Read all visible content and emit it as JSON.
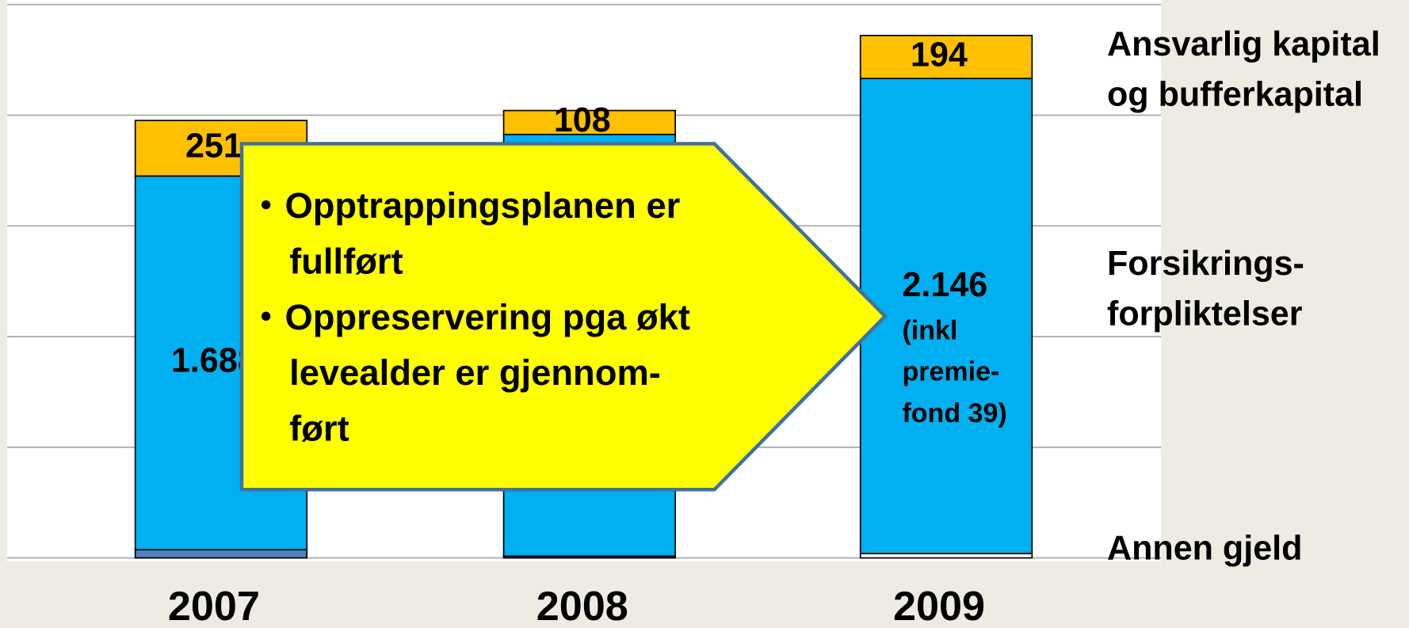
{
  "chart_data": {
    "type": "stacked_bar",
    "categories": [
      "2007",
      "2008",
      "2009"
    ],
    "ylim": [
      0,
      2500
    ],
    "yticks": [
      0,
      500,
      1000,
      1500,
      2000,
      2500
    ],
    "grid": true,
    "series": [
      {
        "name": "Annen gjeld",
        "color": "#4f81bd",
        "colors": [
          "#4f81bd",
          "#1f3864",
          "#ffffff"
        ],
        "values": [
          37,
          8,
          20
        ]
      },
      {
        "name": "Forsikrings-\nforpliktelser",
        "color": "#00b0f0",
        "values": [
          1688,
          1905,
          2146
        ],
        "value_labels": [
          "1.688",
          null,
          "2.146"
        ],
        "notes": [
          null,
          null,
          "(inkl\npremie-\nfond 39)"
        ]
      },
      {
        "name": "Ansvarlig kapital\nog bufferkapital",
        "color": "#ffc000",
        "values": [
          251,
          108,
          194
        ]
      }
    ],
    "callout": {
      "items": [
        [
          "Opptrappingsplanen er",
          "fullført"
        ],
        [
          "Oppreservering pga økt",
          "levealder er gjennom-",
          "ført"
        ]
      ]
    }
  }
}
